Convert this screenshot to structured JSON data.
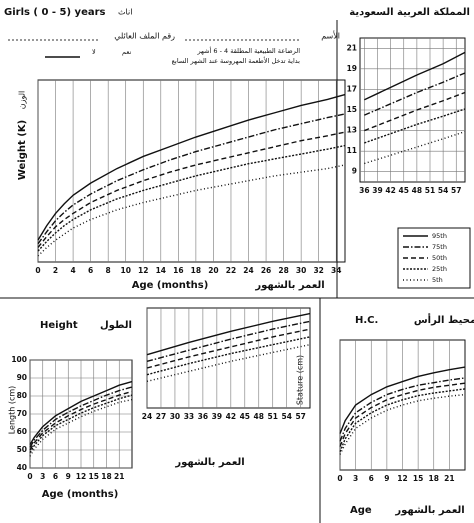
{
  "header": {
    "title_en": "Girls ( 0 - 5) years",
    "gender_ar": "اناث",
    "country_ar": "المملكة العربية السعودية",
    "file_no_ar": "رقم الملف العائلي",
    "name_ar": "الأسم",
    "feeding_line1_ar": "الرضاعة الطبيعية المطلقة 4 - 6 أشهر",
    "feeding_line2_ar": "بداية تدخل الأطعمة المهروسة عند الشهر السابع",
    "yes_ar": "نعم",
    "no_ar": "لا"
  },
  "chart_data": [
    {
      "type": "line",
      "y_label": "Weight (K)",
      "y_label_ar": "الوزن",
      "x_label": "Age (months)",
      "x_label_ar": "العمر بالشهور",
      "xlim": [
        0,
        35
      ],
      "ylim": [
        2,
        17
      ],
      "xticks": [
        0,
        2,
        4,
        6,
        8,
        10,
        12,
        14,
        16,
        18,
        20,
        22,
        24,
        26,
        28,
        30,
        32,
        34
      ],
      "x": [
        0,
        1,
        2,
        3,
        4,
        6,
        9,
        12,
        15,
        18,
        21,
        24,
        27,
        30,
        33,
        35
      ],
      "series": [
        {
          "color": "#111",
          "dash": "none",
          "values": [
            3.8,
            5,
            6,
            6.8,
            7.5,
            8.5,
            9.7,
            10.7,
            11.5,
            12.3,
            13,
            13.7,
            14.3,
            14.9,
            15.4,
            15.8
          ]
        },
        {
          "color": "#111",
          "dash": "6 2 1.5 2",
          "values": [
            3.5,
            4.5,
            5.4,
            6.1,
            6.7,
            7.6,
            8.7,
            9.6,
            10.4,
            11.1,
            11.7,
            12.3,
            12.9,
            13.4,
            13.9,
            14.2
          ]
        },
        {
          "color": "#111",
          "dash": "5 3",
          "values": [
            3.2,
            4.1,
            4.9,
            5.5,
            6,
            6.9,
            7.9,
            8.7,
            9.4,
            10,
            10.5,
            11,
            11.5,
            12,
            12.4,
            12.7
          ]
        },
        {
          "color": "#111",
          "dash": "2 1.5",
          "values": [
            2.9,
            3.7,
            4.4,
            5,
            5.5,
            6.3,
            7.2,
            7.9,
            8.5,
            9.1,
            9.6,
            10.1,
            10.5,
            10.9,
            11.3,
            11.6
          ]
        },
        {
          "color": "#111",
          "dash": "1 2.5",
          "values": [
            2.5,
            3.2,
            3.8,
            4.3,
            4.8,
            5.5,
            6.3,
            6.9,
            7.4,
            7.9,
            8.3,
            8.7,
            9.1,
            9.4,
            9.7,
            10
          ]
        }
      ]
    },
    {
      "type": "line",
      "xlim": [
        35,
        59
      ],
      "ylim": [
        8,
        22
      ],
      "xticks": [
        36,
        39,
        42,
        45,
        48,
        51,
        54,
        57
      ],
      "yticks": [
        9,
        11,
        13,
        15,
        17,
        19,
        21
      ],
      "x": [
        36,
        42,
        48,
        54,
        59
      ],
      "series": [
        {
          "name": "95th",
          "color": "#111",
          "dash": "none",
          "values": [
            16,
            17.2,
            18.4,
            19.5,
            20.6
          ]
        },
        {
          "name": "75th",
          "color": "#111",
          "dash": "6 2 1.5 2",
          "values": [
            14.5,
            15.6,
            16.7,
            17.7,
            18.6
          ]
        },
        {
          "name": "50th",
          "color": "#111",
          "dash": "5 3",
          "values": [
            13,
            14,
            15,
            15.9,
            16.7
          ]
        },
        {
          "name": "25th",
          "color": "#111",
          "dash": "2 1.5",
          "values": [
            11.8,
            12.7,
            13.6,
            14.4,
            15.1
          ]
        },
        {
          "name": "5th",
          "color": "#111",
          "dash": "1 2.5",
          "values": [
            9.8,
            10.6,
            11.4,
            12.2,
            12.9
          ]
        }
      ]
    },
    {
      "type": "line",
      "title": "Height",
      "title_ar": "الطول",
      "y_label": "Length (cm)",
      "x_label": "Age (months)",
      "xlim": [
        0,
        24
      ],
      "ylim": [
        40,
        100
      ],
      "xticks": [
        0,
        3,
        6,
        9,
        12,
        15,
        18,
        21
      ],
      "yticks": [
        40,
        50,
        60,
        70,
        80,
        90,
        100
      ],
      "x": [
        0,
        1,
        3,
        6,
        9,
        12,
        15,
        18,
        21,
        24
      ],
      "series": [
        {
          "color": "#111",
          "dash": "none",
          "values": [
            53,
            57,
            63,
            69,
            73,
            77,
            80,
            83,
            86,
            88
          ]
        },
        {
          "color": "#111",
          "dash": "6 2 1.5 2",
          "values": [
            51.5,
            55.5,
            61,
            67,
            71,
            74.5,
            77.5,
            80.5,
            83,
            85
          ]
        },
        {
          "color": "#111",
          "dash": "5 3",
          "values": [
            50,
            54,
            59.5,
            65,
            69,
            72.5,
            75.5,
            78,
            80.5,
            82.5
          ]
        },
        {
          "color": "#111",
          "dash": "2 1.5",
          "values": [
            48.5,
            52.5,
            58,
            63.5,
            67,
            70.5,
            73.5,
            76,
            78.5,
            80.5
          ]
        },
        {
          "color": "#111",
          "dash": "1 2.5",
          "values": [
            46.5,
            50.5,
            56,
            61.5,
            65,
            68.5,
            71.5,
            74,
            76.5,
            78
          ]
        }
      ]
    },
    {
      "type": "line",
      "y_label": "Stature (cm)",
      "x_label_ar": "العمر بالشهور",
      "xlim": [
        24,
        59
      ],
      "ylim": [
        70,
        115
      ],
      "xticks": [
        24,
        27,
        30,
        33,
        36,
        39,
        42,
        45,
        48,
        51,
        54,
        57
      ],
      "x": [
        24,
        33,
        42,
        51,
        59
      ],
      "series": [
        {
          "color": "#111",
          "dash": "none",
          "values": [
            94,
            99.5,
            104.5,
            109,
            112.5
          ]
        },
        {
          "color": "#111",
          "dash": "6 2 1.5 2",
          "values": [
            91,
            96,
            101,
            105.5,
            109
          ]
        },
        {
          "color": "#111",
          "dash": "5 3",
          "values": [
            88,
            93,
            97.5,
            102,
            105.5
          ]
        },
        {
          "color": "#111",
          "dash": "2 1.5",
          "values": [
            85,
            90,
            94.5,
            98.5,
            102
          ]
        },
        {
          "color": "#111",
          "dash": "1 2.5",
          "values": [
            82,
            86.5,
            91,
            95,
            98.5
          ]
        }
      ]
    },
    {
      "type": "line",
      "title": "H.C.",
      "title_ar": "محيط الرأس",
      "x_label": "Age",
      "x_label_ar": "العمر بالشهور",
      "xlim": [
        0,
        24
      ],
      "ylim": [
        30,
        55
      ],
      "xticks": [
        0,
        3,
        6,
        9,
        12,
        15,
        18,
        21
      ],
      "x": [
        0,
        1,
        3,
        6,
        9,
        12,
        15,
        18,
        21,
        24
      ],
      "series": [
        {
          "color": "#111",
          "dash": "none",
          "values": [
            37,
            39.5,
            42.5,
            44.5,
            46,
            47,
            48,
            48.7,
            49.3,
            49.8
          ]
        },
        {
          "color": "#111",
          "dash": "6 2 1.5 2",
          "values": [
            35.5,
            38,
            41,
            43,
            44.5,
            45.5,
            46.3,
            46.8,
            47.3,
            47.7
          ]
        },
        {
          "color": "#111",
          "dash": "5 3",
          "values": [
            34.5,
            37,
            40,
            42,
            43.5,
            44.5,
            45.3,
            45.9,
            46.3,
            46.7
          ]
        },
        {
          "color": "#111",
          "dash": "2 1.5",
          "values": [
            33.5,
            36,
            39,
            41,
            42.5,
            43.5,
            44.3,
            44.8,
            45.2,
            45.6
          ]
        },
        {
          "color": "#111",
          "dash": "1 2.5",
          "values": [
            33,
            35,
            38,
            40,
            41.5,
            42.5,
            43.3,
            43.8,
            44.2,
            44.5
          ]
        }
      ]
    }
  ]
}
